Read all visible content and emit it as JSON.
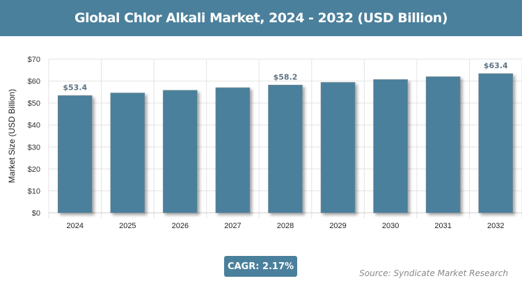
{
  "header": {
    "title": "Global Chlor Alkali Market, 2024 - 2032 (USD Billion)"
  },
  "footer": {
    "cagr": "CAGR: 2.17%",
    "source": "Source: Syndicate Market Research"
  },
  "chart_data": {
    "type": "bar",
    "title": "Global Chlor Alkali Market, 2024 - 2032 (USD Billion)",
    "xlabel": "",
    "ylabel": "Market Size (USD Billion)",
    "ylim": [
      0,
      70
    ],
    "yticks": [
      "$0",
      "$10",
      "$20",
      "$30",
      "$40",
      "$50",
      "$60",
      "$70"
    ],
    "categories": [
      "2024",
      "2025",
      "2026",
      "2027",
      "2028",
      "2029",
      "2030",
      "2031",
      "2032"
    ],
    "values": [
      53.4,
      54.6,
      55.8,
      57.0,
      58.2,
      59.4,
      60.7,
      62.0,
      63.4
    ],
    "data_labels": {
      "0": "$53.4",
      "4": "$58.2",
      "8": "$63.4"
    },
    "grid": true,
    "bar_color": "#4b809c"
  }
}
